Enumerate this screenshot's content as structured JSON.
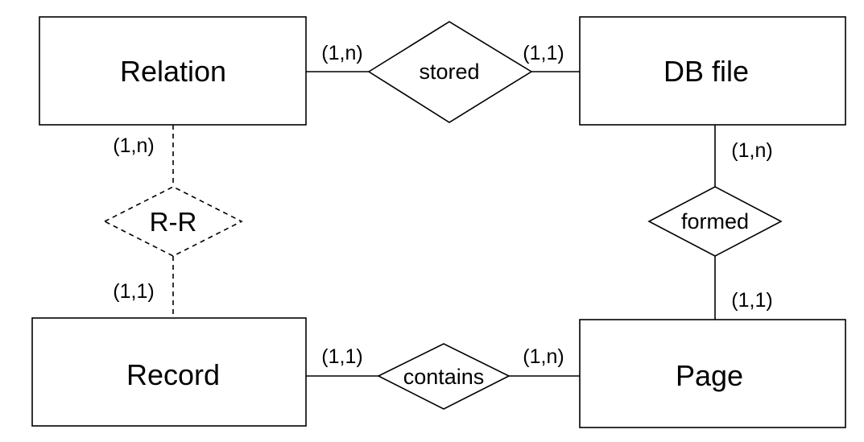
{
  "entities": {
    "relation": "Relation",
    "db_file": "DB file",
    "record": "Record",
    "page": "Page"
  },
  "relationships": {
    "stored": "stored",
    "formed": "formed",
    "contains": "contains",
    "r_r": "R-R"
  },
  "cardinalities": {
    "relation_stored": "(1,n)",
    "dbfile_stored": "(1,1)",
    "dbfile_formed": "(1,n)",
    "page_formed": "(1,1)",
    "record_contains": "(1,1)",
    "page_contains": "(1,n)",
    "relation_rr": "(1,n)",
    "record_rr": "(1,1)"
  }
}
